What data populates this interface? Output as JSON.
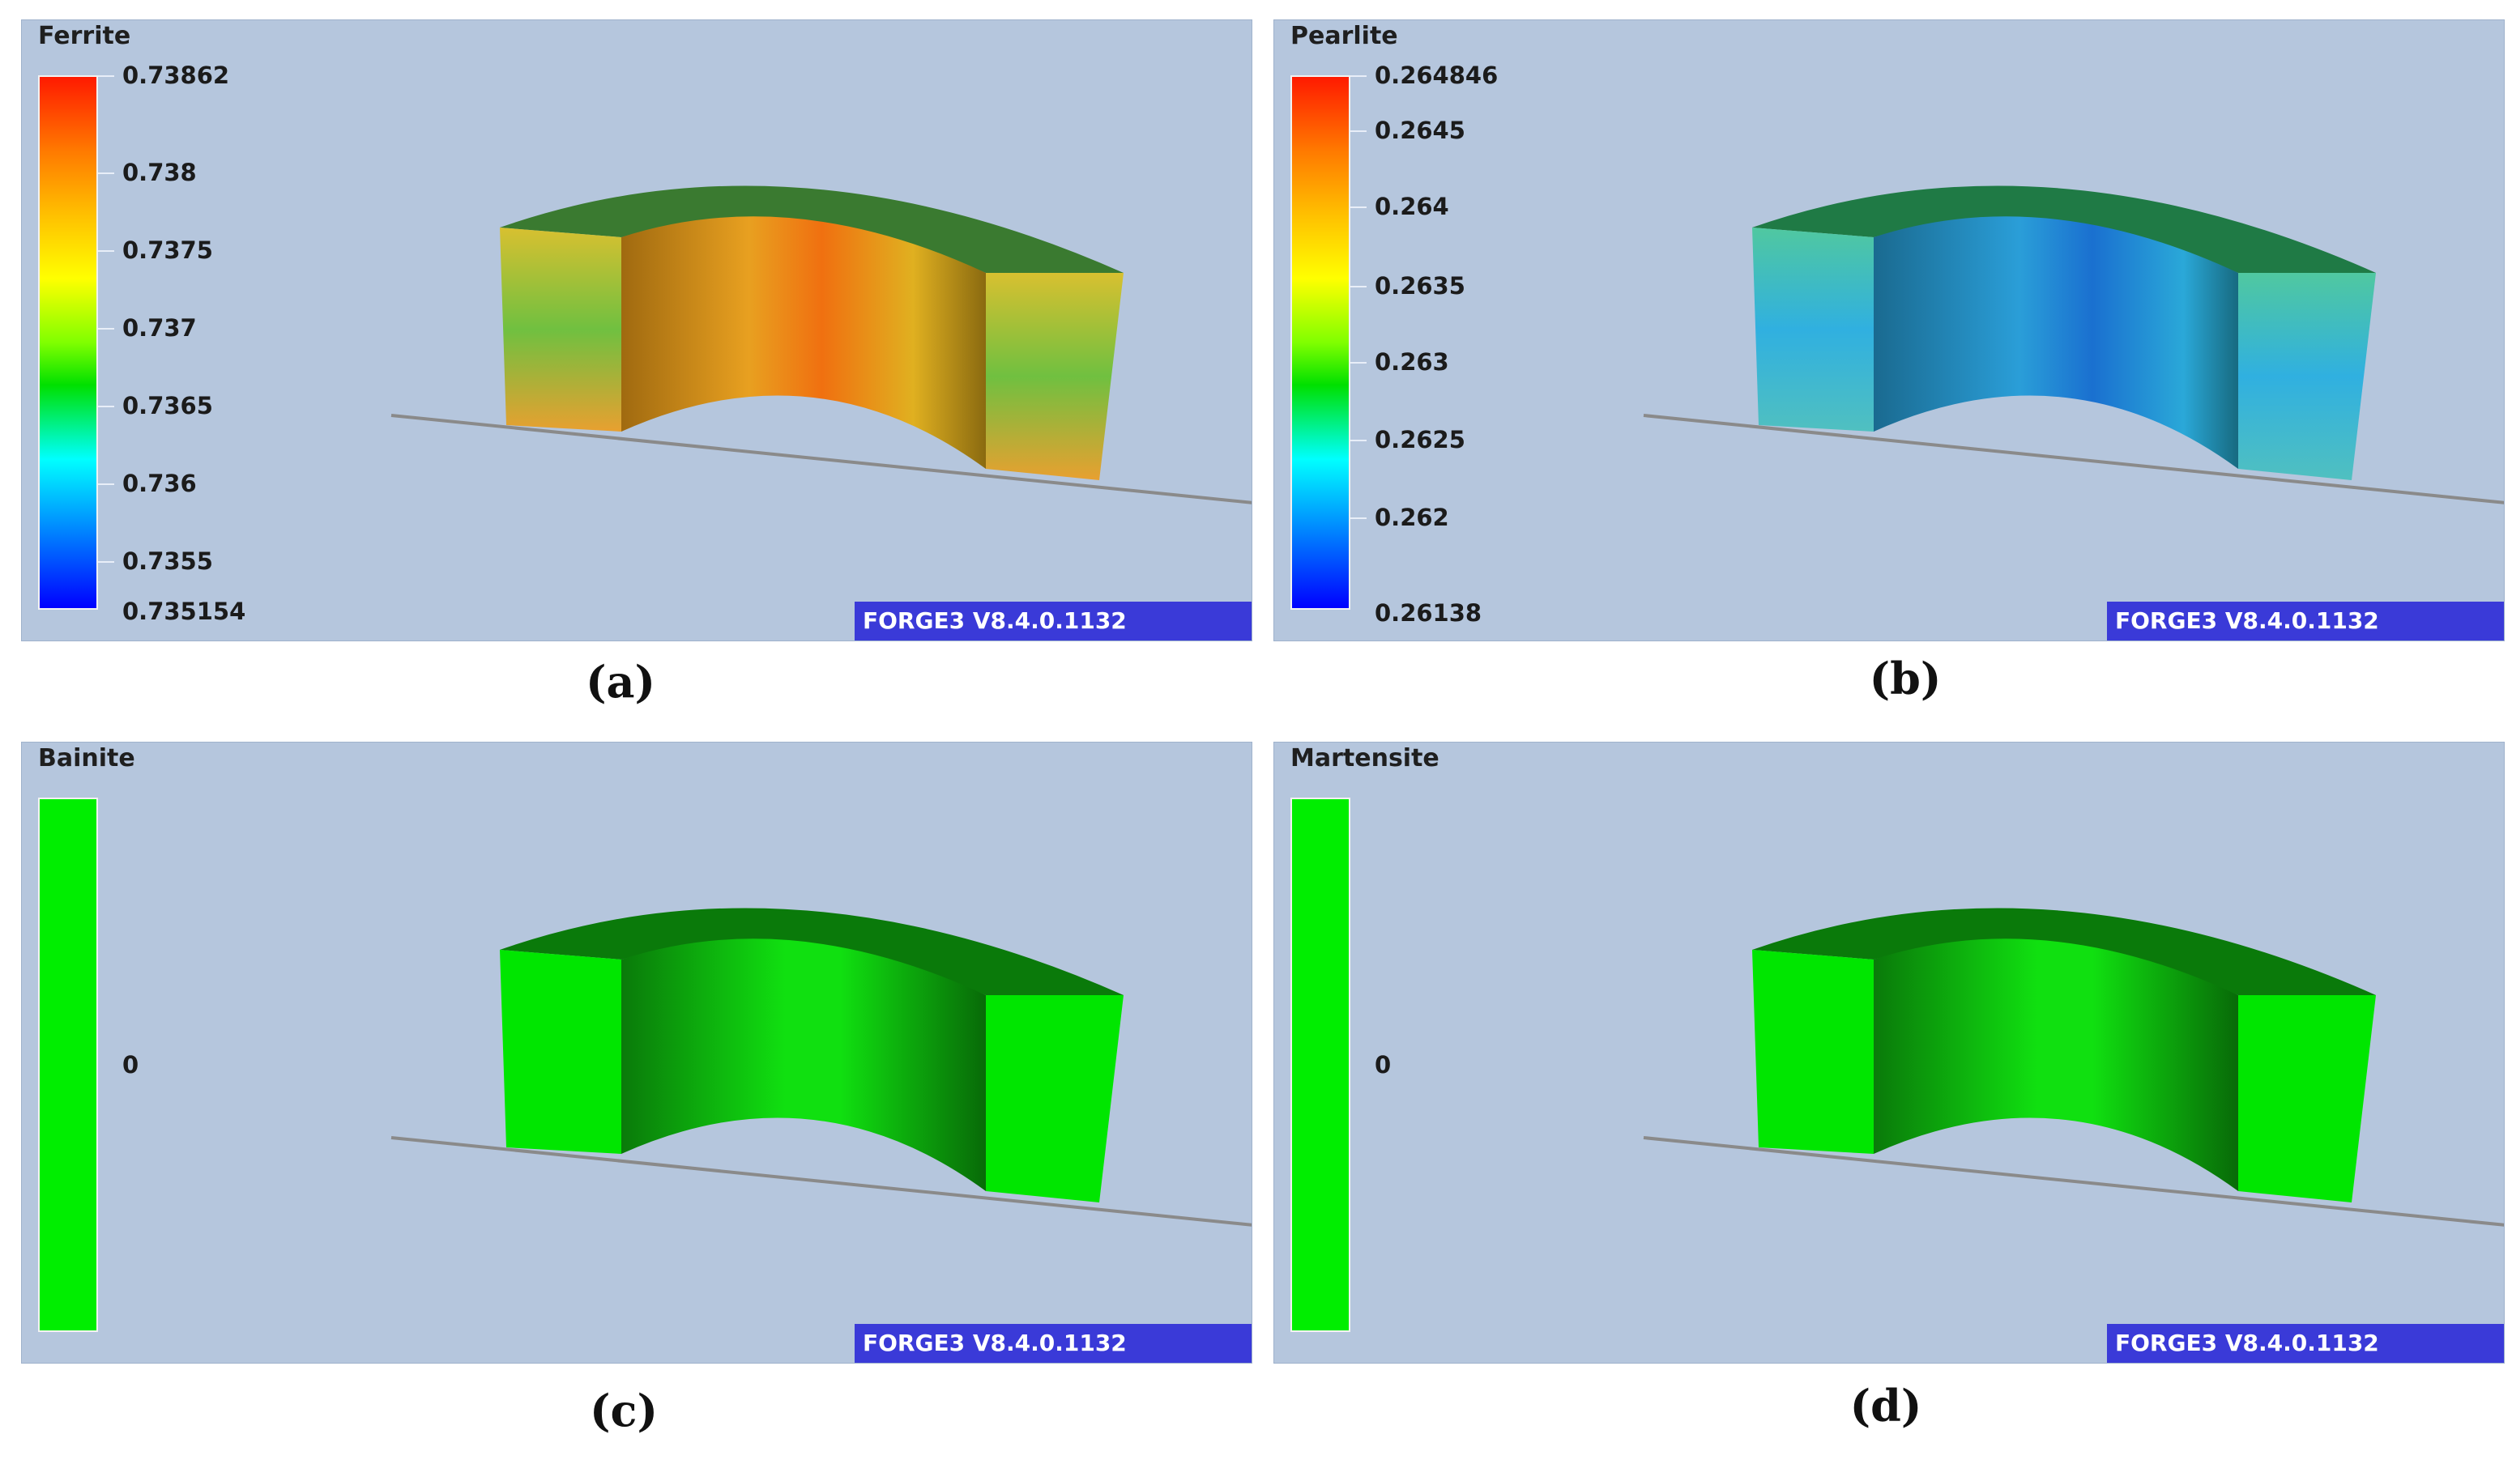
{
  "panels": [
    {
      "id": "a",
      "field": "Ferrite",
      "legend": [
        "0.73862",
        "0.738",
        "0.7375",
        "0.737",
        "0.7365",
        "0.736",
        "0.7355",
        "0.735154"
      ],
      "version": "FORGE3 V8.4.0.1132",
      "caption": "(a)",
      "colormap": "rainbow",
      "dominant_color": "#e8a020"
    },
    {
      "id": "b",
      "field": "Pearlite",
      "legend": [
        "0.264846",
        "0.2645",
        "0.264",
        "0.2635",
        "0.263",
        "0.2625",
        "0.262",
        "0.26138"
      ],
      "version": "FORGE3 V8.4.0.1132",
      "caption": "(b)",
      "colormap": "rainbow",
      "dominant_color": "#2aa8e0"
    },
    {
      "id": "c",
      "field": "Bainite",
      "legend": [
        "0"
      ],
      "version": "FORGE3 V8.4.0.1132",
      "caption": "(c)",
      "colormap": "uniform",
      "dominant_color": "#00e600"
    },
    {
      "id": "d",
      "field": "Martensite",
      "legend": [
        "0"
      ],
      "version": "FORGE3 V8.4.0.1132",
      "caption": "(d)",
      "colormap": "uniform",
      "dominant_color": "#00e600"
    }
  ]
}
